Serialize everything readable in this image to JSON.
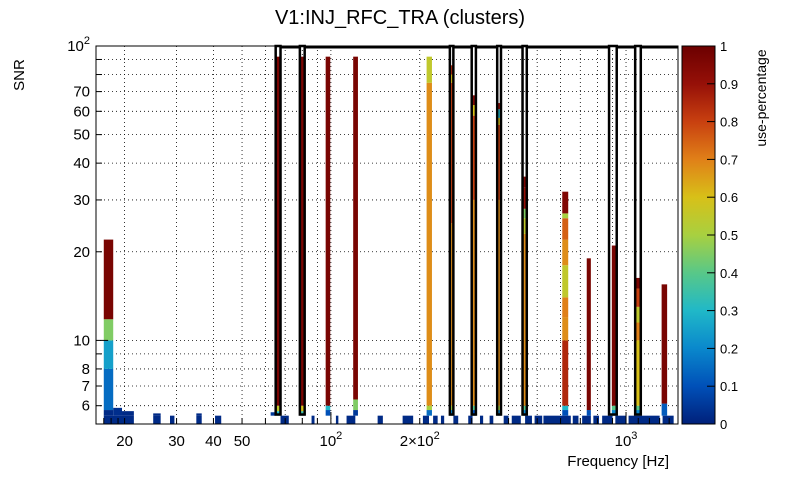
{
  "chart_data": {
    "type": "heatmap",
    "title": "V1:INJ_RFC_TRA (clusters)",
    "xlabel": "Frequency [Hz]",
    "ylabel": "SNR",
    "x_scale": "log",
    "y_scale": "log",
    "xlim": [
      16,
      1500
    ],
    "ylim": [
      5.2,
      100
    ],
    "x_ticks": [
      {
        "value": 20,
        "label": "20"
      },
      {
        "value": 30,
        "label": "30"
      },
      {
        "value": 40,
        "label": "40"
      },
      {
        "value": 50,
        "label": "50"
      },
      {
        "value": 100,
        "label": "10",
        "sup": "2"
      },
      {
        "value": 200,
        "label": "2×10",
        "sup": "2"
      },
      {
        "value": 1000,
        "label": "10",
        "sup": "3"
      }
    ],
    "y_ticks": [
      {
        "value": 6,
        "label": "6"
      },
      {
        "value": 7,
        "label": "7"
      },
      {
        "value": 8,
        "label": "8"
      },
      {
        "value": 10,
        "label": "10"
      },
      {
        "value": 20,
        "label": "20"
      },
      {
        "value": 30,
        "label": "30"
      },
      {
        "value": 40,
        "label": "40"
      },
      {
        "value": 50,
        "label": "50"
      },
      {
        "value": 60,
        "label": "60"
      },
      {
        "value": 70,
        "label": "70"
      },
      {
        "value": 100,
        "label": "10",
        "sup": "2"
      }
    ],
    "colorbar": {
      "label": "use-percentage",
      "range": [
        0,
        1
      ],
      "ticks": [
        "0",
        "0.1",
        "0.2",
        "0.3",
        "0.4",
        "0.5",
        "0.6",
        "0.7",
        "0.8",
        "0.9",
        "1"
      ],
      "stops": [
        "#00207a",
        "#0050b8",
        "#0a88cc",
        "#20b8c8",
        "#58c888",
        "#a8d040",
        "#d8c018",
        "#e08018",
        "#c84010",
        "#961008",
        "#6c0000"
      ]
    },
    "bottom_row": {
      "snr_range": [
        5.2,
        5.55
      ],
      "value": 0.02,
      "f_ranges": [
        [
          17,
          21.5
        ],
        [
          25,
          26.5
        ],
        [
          28.5,
          29.5
        ],
        [
          35,
          36.5
        ],
        [
          40.5,
          42.5
        ],
        [
          67.5,
          72
        ],
        [
          86,
          88
        ],
        [
          104,
          106
        ],
        [
          113,
          121
        ],
        [
          144,
          150
        ],
        [
          175,
          190
        ],
        [
          205,
          215
        ],
        [
          222,
          230
        ],
        [
          236,
          242
        ],
        [
          260,
          270
        ],
        [
          292,
          302
        ],
        [
          320,
          328
        ],
        [
          345,
          355
        ],
        [
          385,
          400
        ],
        [
          410,
          440
        ],
        [
          455,
          480
        ],
        [
          490,
          520
        ],
        [
          525,
          650
        ],
        [
          660,
          690
        ],
        [
          710,
          760
        ],
        [
          775,
          810
        ],
        [
          830,
          900
        ],
        [
          920,
          1000
        ],
        [
          1020,
          1300
        ],
        [
          1330,
          1450
        ]
      ]
    },
    "columns": [
      {
        "f": [
          17,
          18.3
        ],
        "cells": [
          [
            5.55,
            5.8,
            0.02
          ],
          [
            5.8,
            8,
            0.15
          ],
          [
            8,
            10,
            0.25
          ],
          [
            10,
            11.8,
            0.45
          ],
          [
            11.8,
            22,
            0.97
          ]
        ]
      },
      {
        "f": [
          18.3,
          19.6
        ],
        "cells": [
          [
            5.55,
            5.9,
            0.03
          ]
        ]
      },
      {
        "f": [
          19.6,
          21.5
        ],
        "cells": [
          [
            5.55,
            5.75,
            0.02
          ]
        ]
      },
      {
        "f": [
          25,
          26.5
        ],
        "cells": [
          [
            5.55,
            5.65,
            0.02
          ]
        ]
      },
      {
        "f": [
          35,
          36.5
        ],
        "cells": [
          [
            5.55,
            5.65,
            0.02
          ]
        ]
      },
      {
        "f": [
          62.5,
          65
        ],
        "cells": [
          [
            5.55,
            5.7,
            0.05
          ]
        ]
      },
      {
        "f": [
          65,
          67.5
        ],
        "cells": [
          [
            5.55,
            5.75,
            0.3
          ],
          [
            5.75,
            6,
            0.55
          ],
          [
            6,
            92,
            0.97
          ]
        ]
      },
      {
        "f": [
          78.5,
          81.5
        ],
        "cells": [
          [
            5.55,
            5.75,
            0.35
          ],
          [
            5.75,
            6,
            0.6
          ],
          [
            6,
            92,
            0.97
          ]
        ]
      },
      {
        "f": [
          96,
          99.5
        ],
        "cells": [
          [
            5.55,
            5.8,
            0.1
          ],
          [
            5.8,
            6,
            0.3
          ],
          [
            6,
            92,
            0.97
          ]
        ]
      },
      {
        "f": [
          119,
          123.5
        ],
        "cells": [
          [
            5.55,
            5.8,
            0.05
          ],
          [
            5.8,
            6.3,
            0.45
          ],
          [
            6.3,
            92,
            0.97
          ]
        ]
      },
      {
        "f": [
          211,
          220
        ],
        "cells": [
          [
            5.55,
            5.8,
            0.15
          ],
          [
            5.8,
            6,
            0.5
          ],
          [
            6,
            75,
            0.68
          ],
          [
            75,
            92,
            0.55
          ]
        ]
      },
      {
        "f": [
          252,
          260
        ],
        "cells": [
          [
            5.55,
            5.8,
            0.2
          ],
          [
            5.8,
            6,
            0.5
          ],
          [
            6,
            25,
            0.68
          ],
          [
            25,
            75,
            0.8
          ],
          [
            75,
            80,
            0.6
          ],
          [
            80,
            86,
            0.85
          ]
        ]
      },
      {
        "f": [
          300,
          310
        ],
        "cells": [
          [
            5.55,
            5.8,
            0.1
          ],
          [
            5.8,
            6,
            0.4
          ],
          [
            6,
            30,
            0.68
          ],
          [
            30,
            58,
            0.8
          ],
          [
            58,
            63,
            0.6
          ],
          [
            63,
            68,
            0.95
          ]
        ]
      },
      {
        "f": [
          366,
          377
        ],
        "cells": [
          [
            5.55,
            5.8,
            0.2
          ],
          [
            5.8,
            6,
            0.5
          ],
          [
            6,
            30,
            0.68
          ],
          [
            30,
            54,
            0.8
          ],
          [
            54,
            57,
            0.6
          ],
          [
            57,
            61,
            0.3
          ],
          [
            61,
            64,
            0.9
          ]
        ]
      },
      {
        "f": [
          447,
          461
        ],
        "cells": [
          [
            5.55,
            5.8,
            0.2
          ],
          [
            5.8,
            6,
            0.4
          ],
          [
            6,
            23,
            0.68
          ],
          [
            23,
            26,
            0.55
          ],
          [
            26,
            28,
            0.45
          ],
          [
            28,
            33,
            0.9
          ],
          [
            33,
            36,
            0.97
          ]
        ]
      },
      {
        "f": [
          608,
          637
        ],
        "cells": [
          [
            5.55,
            5.8,
            0.1
          ],
          [
            5.8,
            6,
            0.3
          ],
          [
            6,
            10,
            0.85
          ],
          [
            10,
            12,
            0.68
          ],
          [
            12,
            14,
            0.7
          ],
          [
            14,
            18,
            0.55
          ],
          [
            18,
            22,
            0.68
          ],
          [
            22,
            26,
            0.75
          ],
          [
            26,
            27,
            0.5
          ],
          [
            27,
            32,
            0.95
          ]
        ]
      },
      {
        "f": [
          736,
          760
        ],
        "cells": [
          [
            5.55,
            5.8,
            0.1
          ],
          [
            5.8,
            19,
            0.97
          ]
        ]
      },
      {
        "f": [
          895,
          930
        ],
        "cells": [
          [
            5.55,
            5.8,
            0.2
          ],
          [
            5.8,
            6,
            0.4
          ],
          [
            6,
            21,
            0.97
          ]
        ]
      },
      {
        "f": [
          1078,
          1122
        ],
        "cells": [
          [
            5.55,
            5.8,
            0.2
          ],
          [
            5.8,
            6,
            0.4
          ],
          [
            6,
            10,
            0.6
          ],
          [
            10,
            11.5,
            0.7
          ],
          [
            11.5,
            13,
            0.55
          ],
          [
            13,
            15,
            0.8
          ],
          [
            15,
            16.3,
            0.97
          ]
        ]
      },
      {
        "f": [
          1320,
          1378
        ],
        "cells": [
          [
            5.55,
            6.1,
            0.12
          ],
          [
            6.1,
            15.5,
            0.97
          ]
        ]
      }
    ],
    "outlined_bands": [
      [
        65,
        67.5
      ],
      [
        78.5,
        81.5
      ],
      [
        253,
        260
      ],
      [
        300,
        310
      ],
      [
        366,
        377
      ],
      [
        446,
        461
      ],
      [
        876,
        930
      ],
      [
        1074,
        1122
      ]
    ],
    "open_top": [
      [
        67.5,
        78.5
      ],
      [
        81.5,
        253
      ],
      [
        260,
        300
      ],
      [
        310,
        366
      ],
      [
        377,
        446
      ],
      [
        461,
        876
      ],
      [
        930,
        1074
      ],
      [
        1122,
        1500
      ]
    ]
  }
}
